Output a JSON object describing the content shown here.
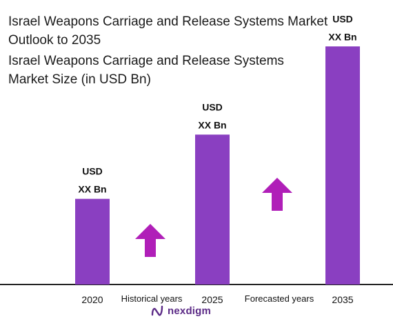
{
  "title": "Israel Weapons Carriage and Release Systems Market Outlook to 2035",
  "subtitle": "Israel Weapons Carriage and Release Systems Market Size (in USD Bn)",
  "colors": {
    "bar": "#8a3fc1",
    "arrow": "#b01fb8",
    "axis": "#222222",
    "logo": "#5b2a86"
  },
  "chart_data": {
    "type": "bar",
    "categories": [
      "2020",
      "2025",
      "2035"
    ],
    "values": [
      1.0,
      1.75,
      2.78
    ],
    "ylim": [
      0,
      3
    ],
    "grid": false,
    "value_labels": [
      {
        "line1": "USD",
        "line2": "XX Bn"
      },
      {
        "line1": "USD",
        "line2": "XX Bn"
      },
      {
        "line1": "USD",
        "line2": "XX Bn"
      }
    ],
    "period_labels": [
      "Historical years",
      "Forecasted years"
    ],
    "arrows": [
      "up-arrow",
      "up-arrow"
    ]
  },
  "logo": {
    "text": "nexdigm",
    "icon": "nexdigm-logo-icon"
  }
}
